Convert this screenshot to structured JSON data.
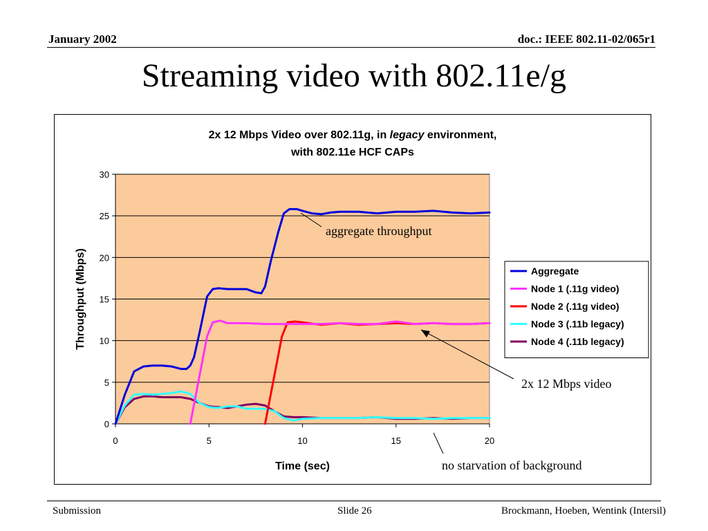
{
  "header": {
    "date": "January 2002",
    "doc_id": "doc.: IEEE 802.11-02/065r1"
  },
  "slide": {
    "title": "Streaming video with 802.11e/g"
  },
  "footer": {
    "left": "Submission",
    "center": "Slide 26",
    "right": "Brockmann, Hoeben, Wentink (Intersil)"
  },
  "annotations": {
    "aggregate": "aggregate throughput",
    "video": "2x 12 Mbps video",
    "background": "no starvation of background"
  },
  "chart_data": {
    "type": "line",
    "title_parts": [
      {
        "text": "2x 12 Mbps Video over 802.11g, in ",
        "italic": false
      },
      {
        "text": "legacy",
        "italic": true
      },
      {
        "text": " environment,",
        "italic": false
      }
    ],
    "subtitle": "with 802.11e HCF CAPs",
    "xlabel": "Time (sec)",
    "ylabel": "Throughput (Mbps)",
    "xlim": [
      0,
      20
    ],
    "ylim": [
      0,
      30
    ],
    "xticks": [
      0,
      5,
      10,
      15,
      20
    ],
    "yticks": [
      0,
      5,
      10,
      15,
      20,
      25,
      30
    ],
    "grid": "horizontal",
    "plot_background": "#FCCB9C",
    "legend_position": "right",
    "series": [
      {
        "name": "Aggregate",
        "color": "#0000DD",
        "points": [
          [
            0,
            0
          ],
          [
            0.5,
            3.5
          ],
          [
            1,
            6.3
          ],
          [
            1.5,
            6.9
          ],
          [
            2,
            7.0
          ],
          [
            2.5,
            7.0
          ],
          [
            3,
            6.9
          ],
          [
            3.5,
            6.6
          ],
          [
            3.8,
            6.6
          ],
          [
            4,
            7.0
          ],
          [
            4.2,
            8.0
          ],
          [
            4.5,
            11
          ],
          [
            4.9,
            15.3
          ],
          [
            5.2,
            16.2
          ],
          [
            5.5,
            16.3
          ],
          [
            6,
            16.2
          ],
          [
            6.5,
            16.2
          ],
          [
            7,
            16.2
          ],
          [
            7.5,
            15.8
          ],
          [
            7.8,
            15.7
          ],
          [
            8,
            16.5
          ],
          [
            8.3,
            19.5
          ],
          [
            8.7,
            23
          ],
          [
            9,
            25.3
          ],
          [
            9.3,
            25.8
          ],
          [
            9.7,
            25.8
          ],
          [
            10,
            25.6
          ],
          [
            10.5,
            25.3
          ],
          [
            11,
            25.2
          ],
          [
            11.5,
            25.4
          ],
          [
            12,
            25.5
          ],
          [
            13,
            25.5
          ],
          [
            14,
            25.3
          ],
          [
            15,
            25.5
          ],
          [
            16,
            25.5
          ],
          [
            17,
            25.6
          ],
          [
            18,
            25.4
          ],
          [
            19,
            25.3
          ],
          [
            20,
            25.4
          ]
        ]
      },
      {
        "name": "Node 1 (.11g video)",
        "color": "#FF33FF",
        "points": [
          [
            4,
            0
          ],
          [
            4.3,
            3.5
          ],
          [
            4.6,
            7
          ],
          [
            4.9,
            10.5
          ],
          [
            5.2,
            12.2
          ],
          [
            5.6,
            12.4
          ],
          [
            6,
            12.1
          ],
          [
            7,
            12.1
          ],
          [
            8,
            12.0
          ],
          [
            9,
            12.0
          ],
          [
            10,
            12.0
          ],
          [
            11,
            12.0
          ],
          [
            12,
            12.1
          ],
          [
            13,
            12.0
          ],
          [
            14,
            12.0
          ],
          [
            15,
            12.3
          ],
          [
            16,
            12.0
          ],
          [
            17,
            12.1
          ],
          [
            18,
            12.0
          ],
          [
            19,
            12.0
          ],
          [
            20,
            12.1
          ]
        ]
      },
      {
        "name": "Node 2 (.11g video)",
        "color": "#FF0000",
        "points": [
          [
            8,
            0
          ],
          [
            8.3,
            3.5
          ],
          [
            8.6,
            7
          ],
          [
            8.9,
            10.5
          ],
          [
            9.2,
            12.2
          ],
          [
            9.6,
            12.3
          ],
          [
            10,
            12.2
          ],
          [
            11,
            11.9
          ],
          [
            12,
            12.1
          ],
          [
            13,
            11.9
          ],
          [
            14,
            12.0
          ],
          [
            15,
            12.1
          ],
          [
            16,
            12.0
          ],
          [
            17,
            12.1
          ],
          [
            18,
            12.0
          ],
          [
            19,
            12.0
          ],
          [
            20,
            12.1
          ]
        ]
      },
      {
        "name": "Node 3 (.11b legacy)",
        "color": "#33FFFF",
        "points": [
          [
            0,
            0
          ],
          [
            0.5,
            2.2
          ],
          [
            1,
            3.5
          ],
          [
            1.5,
            3.6
          ],
          [
            2,
            3.5
          ],
          [
            2.5,
            3.6
          ],
          [
            3,
            3.7
          ],
          [
            3.5,
            3.9
          ],
          [
            4,
            3.6
          ],
          [
            4.5,
            2.5
          ],
          [
            5,
            2.0
          ],
          [
            5.5,
            1.9
          ],
          [
            6,
            2.1
          ],
          [
            6.5,
            2.1
          ],
          [
            7,
            1.8
          ],
          [
            7.5,
            1.8
          ],
          [
            8,
            1.8
          ],
          [
            8.5,
            1.5
          ],
          [
            9,
            0.7
          ],
          [
            9.5,
            0.4
          ],
          [
            10,
            0.6
          ],
          [
            11,
            0.7
          ],
          [
            12,
            0.7
          ],
          [
            13,
            0.7
          ],
          [
            14,
            0.8
          ],
          [
            15,
            0.7
          ],
          [
            16,
            0.7
          ],
          [
            17,
            0.6
          ],
          [
            18,
            0.7
          ],
          [
            19,
            0.7
          ],
          [
            20,
            0.7
          ]
        ]
      },
      {
        "name": "Node 4 (.11b legacy)",
        "color": "#800060",
        "points": [
          [
            0,
            0
          ],
          [
            0.5,
            2.0
          ],
          [
            1,
            3.0
          ],
          [
            1.5,
            3.3
          ],
          [
            2,
            3.3
          ],
          [
            2.5,
            3.2
          ],
          [
            3,
            3.2
          ],
          [
            3.5,
            3.2
          ],
          [
            4,
            3.0
          ],
          [
            4.5,
            2.5
          ],
          [
            5,
            2.1
          ],
          [
            5.5,
            2.0
          ],
          [
            6,
            1.9
          ],
          [
            6.5,
            2.1
          ],
          [
            7,
            2.3
          ],
          [
            7.5,
            2.4
          ],
          [
            8,
            2.2
          ],
          [
            8.5,
            1.5
          ],
          [
            9,
            0.9
          ],
          [
            9.5,
            0.8
          ],
          [
            10,
            0.8
          ],
          [
            11,
            0.7
          ],
          [
            12,
            0.7
          ],
          [
            13,
            0.7
          ],
          [
            14,
            0.8
          ],
          [
            15,
            0.6
          ],
          [
            16,
            0.6
          ],
          [
            17,
            0.7
          ],
          [
            18,
            0.6
          ],
          [
            19,
            0.7
          ],
          [
            20,
            0.7
          ]
        ]
      }
    ]
  }
}
